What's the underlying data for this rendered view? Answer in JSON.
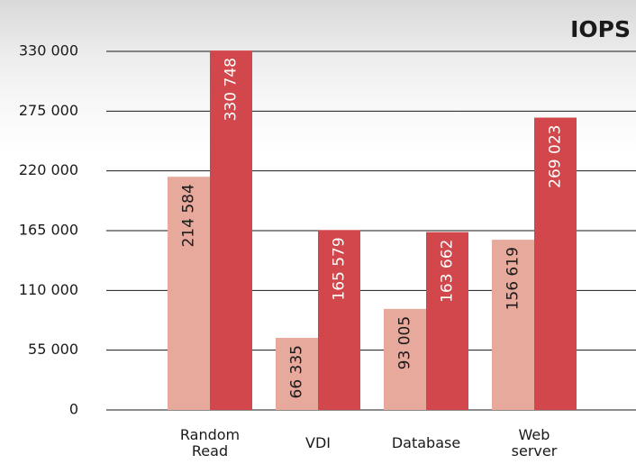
{
  "chart_data": {
    "type": "bar",
    "title": "IOPS",
    "categories": [
      "Random Read",
      "VDI",
      "Database",
      "Web server"
    ],
    "series": [
      {
        "color": "#e8a99d",
        "values": [
          214584,
          66335,
          93005,
          156619
        ],
        "value_labels": [
          "214 584",
          "66 335",
          "93 005",
          "156 619"
        ]
      },
      {
        "color": "#d2474b",
        "values": [
          330748,
          165579,
          163662,
          269023
        ],
        "value_labels": [
          "330 748",
          "165 579",
          "163 662",
          "269 023"
        ]
      }
    ],
    "ylim": [
      0,
      330000
    ],
    "yticks": [
      0,
      {
        "value": 55000,
        "label": "55 000"
      },
      {
        "value": 110000,
        "label": "110 000"
      },
      {
        "value": 165000,
        "label": "165 000"
      },
      {
        "value": 220000,
        "label": "220 000"
      },
      {
        "value": 275000,
        "label": "275 000"
      },
      {
        "value": 330000,
        "label": "330 000"
      }
    ],
    "grid": true
  }
}
